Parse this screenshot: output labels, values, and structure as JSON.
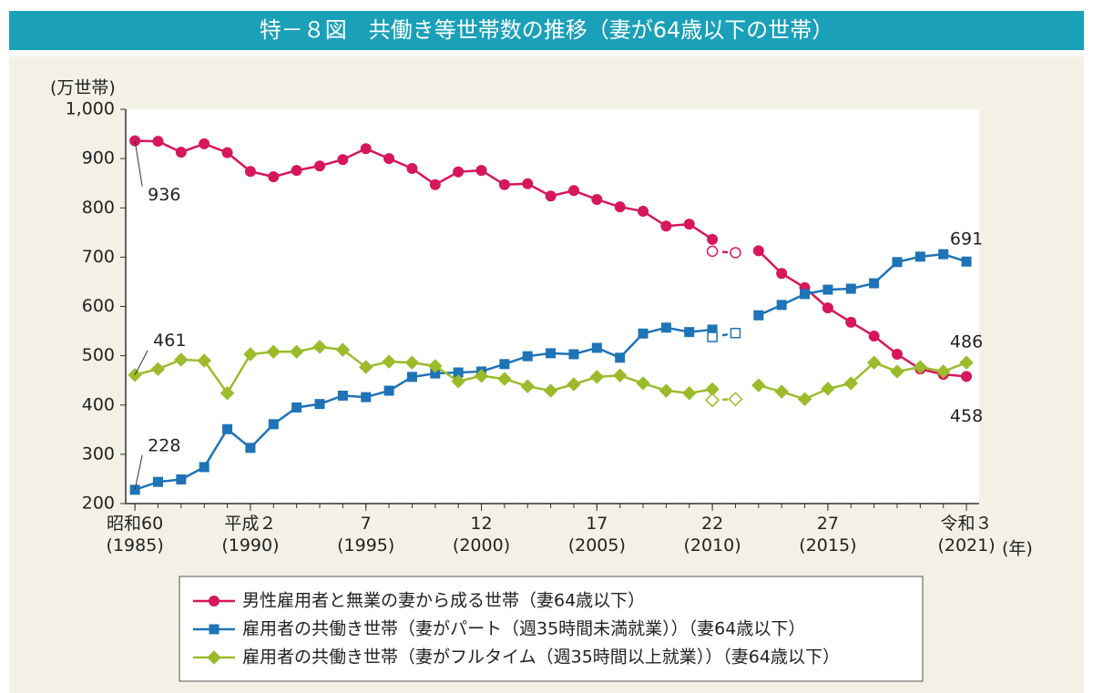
{
  "chart_data": {
    "type": "line",
    "title": "特－８図　共働き等世帯数の推移（妻が64歳以下の世帯）",
    "y_label": "(万世帯)",
    "x_label": "(年)",
    "x": [
      1985,
      1986,
      1987,
      1988,
      1989,
      1990,
      1991,
      1992,
      1993,
      1994,
      1995,
      1996,
      1997,
      1998,
      1999,
      2000,
      2001,
      2002,
      2003,
      2004,
      2005,
      2006,
      2007,
      2008,
      2009,
      2010,
      2011,
      2012,
      2013,
      2014,
      2015,
      2016,
      2017,
      2018,
      2019,
      2020,
      2021
    ],
    "xlim": [
      1984.6,
      2021.55
    ],
    "xticks": [
      {
        "value": 1985,
        "label": "昭和60\n(1985)"
      },
      {
        "value": 1990,
        "label": "平成２\n(1990)"
      },
      {
        "value": 1995,
        "label": "7\n(1995)"
      },
      {
        "value": 2000,
        "label": "12\n(2000)"
      },
      {
        "value": 2005,
        "label": "17\n(2005)"
      },
      {
        "value": 2010,
        "label": "22\n(2010)"
      },
      {
        "value": 2015,
        "label": "27\n(2015)"
      },
      {
        "value": 2021,
        "label": "令和３\n(2021)"
      }
    ],
    "ylim": [
      200,
      1000
    ],
    "yticks": [
      200,
      300,
      400,
      500,
      600,
      700,
      800,
      900,
      {
        "value": 1000,
        "label": "1,000"
      }
    ],
    "series": [
      {
        "name": "男性雇用者と無業の妻から成る世帯（妻64歳以下）",
        "color": "#d6175a",
        "marker": "circle",
        "values": [
          936,
          935,
          913,
          930,
          912,
          874,
          863,
          876,
          885,
          898,
          920,
          900,
          880,
          847,
          873,
          876,
          847,
          849,
          824,
          835,
          817,
          802,
          793,
          763,
          767,
          736,
          null,
          713,
          667,
          638,
          597,
          568,
          540,
          503,
          473,
          462,
          458
        ]
      },
      {
        "name": "雇用者の共働き世帯（妻がパート（週35時間未満就業））（妻64歳以下）",
        "color": "#1f73b7",
        "marker": "square",
        "values": [
          228,
          244,
          249,
          274,
          351,
          313,
          361,
          395,
          402,
          419,
          416,
          429,
          457,
          464,
          466,
          468,
          483,
          499,
          505,
          503,
          516,
          496,
          545,
          557,
          548,
          553,
          null,
          582,
          603,
          625,
          634,
          636,
          647,
          690,
          701,
          706,
          691
        ]
      },
      {
        "name": "雇用者の共働き世帯（妻がフルタイム（週35時間以上就業））（妻64歳以下）",
        "color": "#9bbb2a",
        "marker": "diamond",
        "values": [
          461,
          473,
          492,
          490,
          424,
          503,
          508,
          508,
          518,
          512,
          477,
          488,
          486,
          479,
          448,
          459,
          453,
          438,
          429,
          442,
          457,
          460,
          444,
          429,
          424,
          432,
          null,
          440,
          427,
          412,
          433,
          444,
          486,
          468,
          477,
          468,
          486
        ]
      },
      {
        "color": "#d6175a",
        "marker": "circle",
        "open": true,
        "values": [
          null,
          null,
          null,
          null,
          null,
          null,
          null,
          null,
          null,
          null,
          null,
          null,
          null,
          null,
          null,
          null,
          null,
          null,
          null,
          null,
          null,
          null,
          null,
          null,
          null,
          712,
          709,
          null,
          null,
          null,
          null,
          null,
          null,
          null,
          null,
          null,
          null
        ]
      },
      {
        "color": "#1f73b7",
        "marker": "square",
        "open": true,
        "values": [
          null,
          null,
          null,
          null,
          null,
          null,
          null,
          null,
          null,
          null,
          null,
          null,
          null,
          null,
          null,
          null,
          null,
          null,
          null,
          null,
          null,
          null,
          null,
          null,
          null,
          538,
          546,
          null,
          null,
          null,
          null,
          null,
          null,
          null,
          null,
          null,
          null
        ]
      },
      {
        "color": "#9bbb2a",
        "marker": "diamond",
        "open": true,
        "values": [
          null,
          null,
          null,
          null,
          null,
          null,
          null,
          null,
          null,
          null,
          null,
          null,
          null,
          null,
          null,
          null,
          null,
          null,
          null,
          null,
          null,
          null,
          null,
          null,
          null,
          410,
          412,
          null,
          null,
          null,
          null,
          null,
          null,
          null,
          null,
          null,
          null
        ]
      }
    ]
  }
}
